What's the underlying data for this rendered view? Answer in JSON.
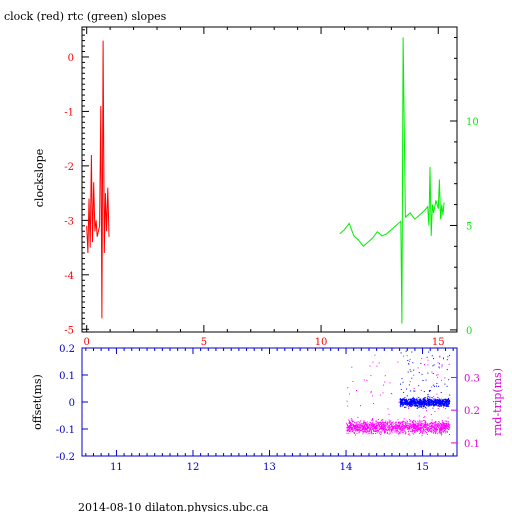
{
  "chart_data": [
    {
      "type": "line",
      "title": "clock (red) rtc (green) slopes",
      "ylabel": "clockslope",
      "xlim": [
        -0.2,
        15.8
      ],
      "ylim_left": [
        -5.05,
        0.55
      ],
      "ylim_right": [
        -0.1,
        14.5
      ],
      "x_ticks": [
        0,
        5,
        10,
        15
      ],
      "left_ticks": [
        0,
        -1,
        -2,
        -3,
        -4,
        -5
      ],
      "right_ticks": [
        0,
        5,
        10
      ],
      "colors": {
        "clock": "#ff0000",
        "rtc": "#00ee00",
        "axes": "#000000"
      },
      "series": [
        {
          "x": [
            0.0,
            0.05,
            0.1,
            0.15,
            0.2,
            0.25,
            0.3,
            0.35,
            0.4,
            0.45,
            0.5,
            0.55,
            0.6,
            0.65,
            0.7,
            0.75,
            0.8,
            0.85,
            0.9,
            0.95
          ],
          "y": [
            -3.1,
            -3.6,
            -2.6,
            -3.5,
            -1.8,
            -3.4,
            -2.3,
            -3.2,
            -3.0,
            -3.3,
            -3.2,
            -3.1,
            -0.9,
            -4.8,
            0.3,
            -3.6,
            -2.5,
            -3.2,
            -2.4,
            -3.3
          ]
        },
        {
          "x": [
            10.8,
            11.0,
            11.2,
            11.4,
            11.6,
            11.8,
            12.0,
            12.2,
            12.4,
            12.6,
            12.8,
            13.0,
            13.2,
            13.4,
            13.45,
            13.5,
            13.6,
            13.8,
            14.0,
            14.2,
            14.4,
            14.55,
            14.6,
            14.65,
            14.7,
            14.75,
            14.8,
            14.9,
            15.0,
            15.05,
            15.1,
            15.15,
            15.2,
            15.25
          ],
          "y": [
            4.6,
            4.8,
            5.1,
            4.5,
            4.3,
            4.0,
            4.2,
            4.4,
            4.7,
            4.5,
            4.6,
            4.8,
            5.0,
            5.2,
            0.3,
            14.0,
            5.4,
            5.6,
            5.3,
            5.5,
            5.7,
            5.9,
            5.0,
            7.8,
            4.5,
            6.0,
            5.6,
            6.2,
            5.8,
            7.2,
            5.3,
            6.0,
            5.5,
            6.1
          ]
        }
      ]
    },
    {
      "type": "scatter",
      "ylabel_left": "offset(ms)",
      "ylabel_right": "rnd-trip(ms)",
      "xlim": [
        10.55,
        15.45
      ],
      "ylim_left": [
        -0.2,
        0.2
      ],
      "ylim_right": [
        0.06,
        0.39
      ],
      "x_ticks": [
        11,
        12,
        13,
        14,
        15
      ],
      "left_ticks": [
        "0.2",
        "0.1",
        "0",
        "-0.1",
        "-0.2"
      ],
      "right_ticks": [
        "0.3",
        "0.2",
        "0.1"
      ],
      "colors": {
        "offset": "#0000ff",
        "round_trip": "#ff00ff",
        "axes": "#0000cc",
        "right_axis": "#dd00dd"
      },
      "series": [
        {
          "x_start": 14.7,
          "x_end": 15.35,
          "y_center": 0.0,
          "y_spread": 0.04
        },
        {
          "x_start": 14.0,
          "x_end": 15.35,
          "y_center": 0.15,
          "y_spread": 0.04
        }
      ]
    }
  ],
  "footer": "2014-08-10 dilaton.physics.ubc.ca"
}
